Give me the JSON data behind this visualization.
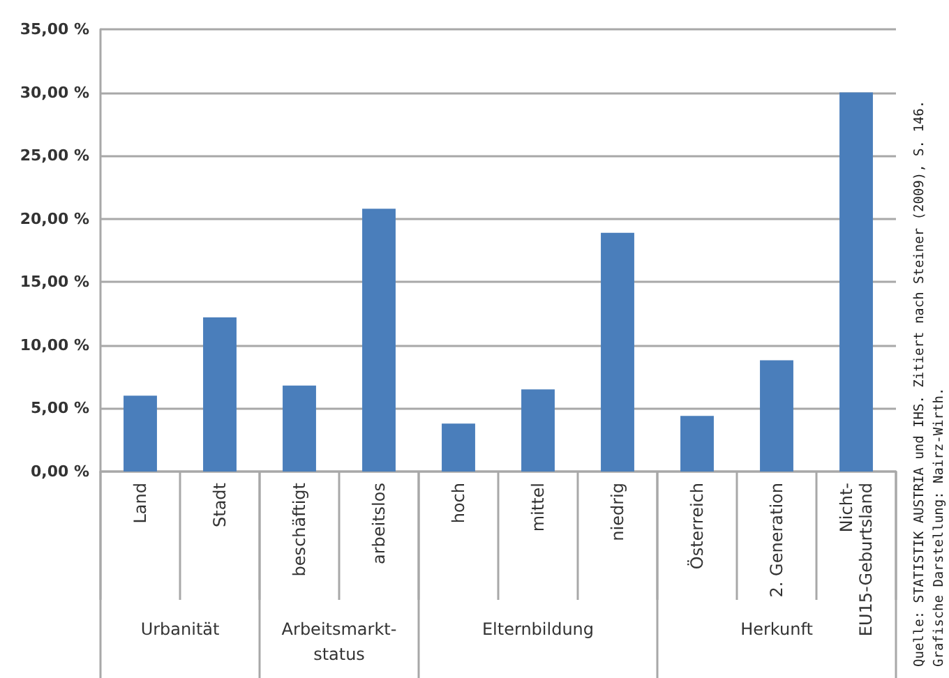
{
  "chart_data": {
    "type": "bar",
    "categories": [
      "Land",
      "Stadt",
      "beschäftigt",
      "arbeitslos",
      "hoch",
      "mittel",
      "niedrig",
      "Österreich",
      "2. Generation",
      "Nicht-EU15-Geburtsland"
    ],
    "values": [
      6.0,
      12.2,
      6.8,
      20.8,
      3.8,
      6.5,
      18.9,
      4.4,
      8.8,
      30.0
    ],
    "color": "#4a7ebb",
    "ylim": [
      0,
      35
    ],
    "yticks": [
      {
        "value": 0,
        "label": "0,00 %"
      },
      {
        "value": 5,
        "label": "5,00 %"
      },
      {
        "value": 10,
        "label": "10,00 %"
      },
      {
        "value": 15,
        "label": "15,00 %"
      },
      {
        "value": 20,
        "label": "20,00 %"
      },
      {
        "value": 25,
        "label": "25,00 %"
      },
      {
        "value": 30,
        "label": "30,00 %"
      },
      {
        "value": 35,
        "label": "35,00 %"
      }
    ],
    "grid": "y",
    "annotations": [
      "Urbanität",
      "Arbeitsmarkt-status",
      "Elternbildung",
      "Herkunft",
      "Quelle: STATISTIK AUSTRIA und IHS. Zitiert nach Steiner (2009), S. 146.",
      "Grafische Darstellung: Nairz-Wirth."
    ]
  }
}
